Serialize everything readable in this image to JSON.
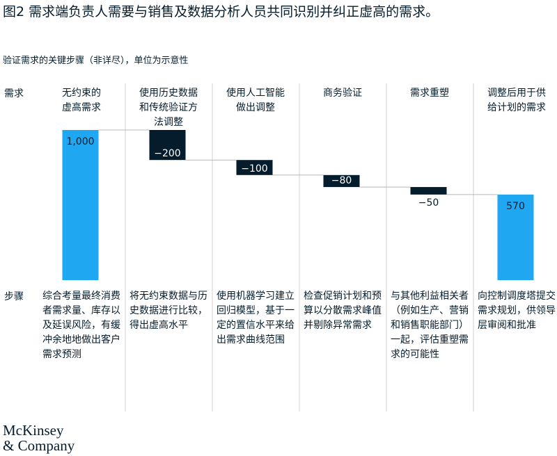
{
  "chart_data": {
    "type": "waterfall",
    "title": "图2 需求端负责人需要与销售及数据分析人员共同识别并纠正虚高的需求。",
    "subtitle": "验证需求的关键步骤（非详尽），单位为示意性",
    "categories": [
      "无约束的\n虚高需求",
      "使用历史数据\n和传统验证方\n法调整",
      "使用人工智能\n做出调整",
      "商务验证",
      "需求重塑",
      "调整后用于供\n给计划的需求"
    ],
    "values": [
      1000,
      -200,
      -100,
      -80,
      -50,
      570
    ],
    "value_labels": [
      "1,000",
      "−200",
      "−100",
      "−80",
      "−50",
      "570"
    ],
    "measure": [
      "absolute",
      "relative",
      "relative",
      "relative",
      "relative",
      "total"
    ],
    "total_color": "#1fa7f2",
    "delta_color": "#051c2c"
  },
  "rows": {
    "demand_label": "需求",
    "steps_label": "步骤"
  },
  "steps": [
    "综合考量最终消费者需求量、库存以及延误风险，有缓冲余地地做出客户需求预测",
    "将无约束数据与历史数据进行比较，得出虚高水平",
    "使用机器学习建立回归模型，基于一定的置信水平来给出需求曲线范围",
    "检查促销计划和预算以分散需求峰值并剔除异常需求",
    "与其他利益相关者（例如生产、营销和销售职能部门）一起，评估重塑需求的可能性",
    "向控制调度塔提交需求规划，供领导层审阅和批准"
  ],
  "logo": "McKinsey\n& Company"
}
